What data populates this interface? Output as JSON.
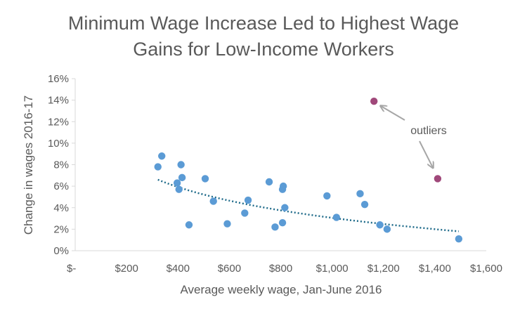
{
  "chart_data": {
    "type": "scatter",
    "title_lines": [
      "Minimum Wage Increase Led to Highest Wage",
      "Gains for Low-Income Workers"
    ],
    "xlabel": "Average weekly wage, Jan-June 2016",
    "ylabel": "Change in wages 2016-17",
    "xlim": [
      0,
      1600
    ],
    "ylim": [
      0,
      0.16
    ],
    "x_ticks": [
      0,
      200,
      400,
      600,
      800,
      1000,
      1200,
      1400,
      1600
    ],
    "x_tick_labels": [
      "$-",
      "$200",
      "$400",
      "$600",
      "$800",
      "$1,000",
      "$1,200",
      "$1,400",
      "$1,600"
    ],
    "y_ticks": [
      0,
      0.02,
      0.04,
      0.06,
      0.08,
      0.1,
      0.12,
      0.14,
      0.16
    ],
    "y_tick_labels": [
      "0%",
      "2%",
      "4%",
      "6%",
      "8%",
      "10%",
      "12%",
      "14%",
      "16%"
    ],
    "grid": false,
    "series": [
      {
        "role": "points",
        "color": "#5b9bd5",
        "points": [
          [
            322,
            0.078
          ],
          [
            337,
            0.088
          ],
          [
            397,
            0.063
          ],
          [
            404,
            0.057
          ],
          [
            412,
            0.08
          ],
          [
            416,
            0.068
          ],
          [
            443,
            0.024
          ],
          [
            506,
            0.067
          ],
          [
            538,
            0.046
          ],
          [
            592,
            0.025
          ],
          [
            660,
            0.035
          ],
          [
            673,
            0.047
          ],
          [
            755,
            0.064
          ],
          [
            778,
            0.022
          ],
          [
            807,
            0.026
          ],
          [
            807,
            0.057
          ],
          [
            810,
            0.06
          ],
          [
            816,
            0.04
          ],
          [
            980,
            0.051
          ],
          [
            1017,
            0.031
          ],
          [
            1109,
            0.053
          ],
          [
            1127,
            0.043
          ],
          [
            1186,
            0.024
          ],
          [
            1214,
            0.02
          ],
          [
            1493,
            0.011
          ]
        ]
      },
      {
        "role": "outliers",
        "color": "#a0487a",
        "points": [
          [
            1163,
            0.139
          ],
          [
            1411,
            0.067
          ]
        ]
      }
    ],
    "trendline": {
      "type": "logarithmic",
      "color": "#1f6b8a",
      "style": "dotted",
      "x_range": [
        322,
        1493
      ],
      "y_start": 0.066,
      "y_end": 0.018
    },
    "annotation": {
      "text": "outliers",
      "color": "#595959",
      "arrow_color": "#a6a6a6"
    }
  }
}
